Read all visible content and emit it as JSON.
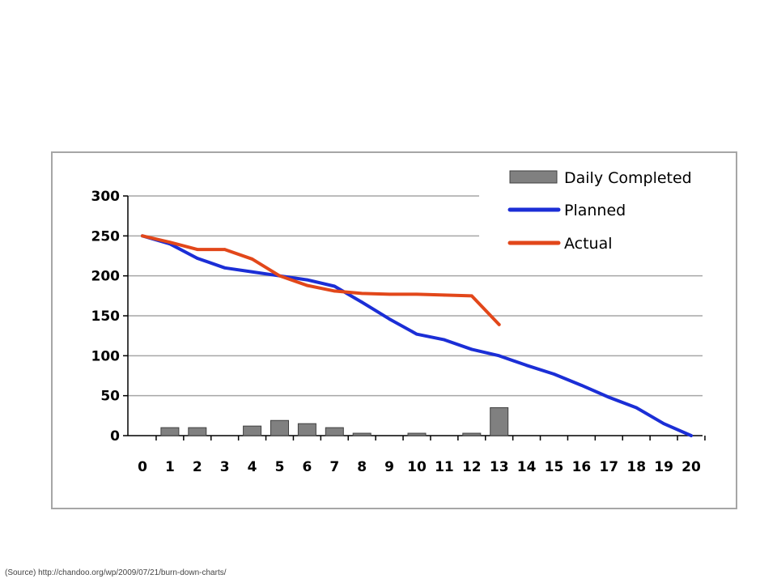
{
  "source_note": "(Source) http://chandoo.org/wp/2009/07/21/burn-down-charts/",
  "chart_data": {
    "type": "bar",
    "x": [
      0,
      1,
      2,
      3,
      4,
      5,
      6,
      7,
      8,
      9,
      10,
      11,
      12,
      13,
      14,
      15,
      16,
      17,
      18,
      19,
      20
    ],
    "ylim": [
      0,
      300
    ],
    "yticks": [
      0,
      50,
      100,
      150,
      200,
      250,
      300
    ],
    "grid": true,
    "legend_position": "top-right",
    "series": [
      {
        "name": "Daily Completed",
        "type": "bar",
        "color": "#808080",
        "x": [
          1,
          2,
          4,
          5,
          6,
          7,
          8,
          10,
          12,
          13
        ],
        "values": [
          10,
          10,
          12,
          19,
          15,
          10,
          3,
          3,
          3,
          35
        ]
      },
      {
        "name": "Planned",
        "type": "line",
        "color": "#1b2ed6",
        "x": [
          0,
          1,
          2,
          3,
          4,
          5,
          6,
          7,
          8,
          9,
          10,
          11,
          12,
          13,
          14,
          15,
          16,
          17,
          18,
          19,
          20
        ],
        "values": [
          250,
          240,
          222,
          210,
          205,
          200,
          195,
          187,
          167,
          146,
          127,
          120,
          108,
          100,
          88,
          77,
          63,
          48,
          35,
          15,
          0
        ]
      },
      {
        "name": "Actual",
        "type": "line",
        "color": "#e2471a",
        "x": [
          0,
          1,
          2,
          3,
          4,
          5,
          6,
          7,
          8,
          9,
          10,
          11,
          12,
          13
        ],
        "values": [
          250,
          242,
          233,
          233,
          221,
          200,
          188,
          181,
          178,
          177,
          177,
          176,
          175,
          139
        ]
      }
    ]
  }
}
